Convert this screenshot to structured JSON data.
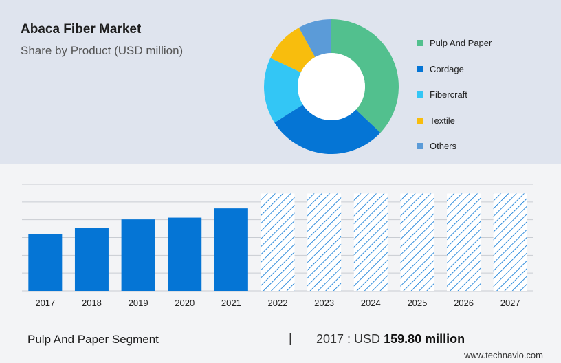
{
  "header": {
    "title": "Abaca Fiber Market",
    "subtitle": "Share by Product (USD million)"
  },
  "legend": [
    {
      "label": "Pulp And Paper",
      "color": "#52c08e"
    },
    {
      "label": "Cordage",
      "color": "#0575d5"
    },
    {
      "label": "Fibercraft",
      "color": "#33c6f5"
    },
    {
      "label": "Textile",
      "color": "#f8bd0d"
    },
    {
      "label": "Others",
      "color": "#5b9bd8"
    }
  ],
  "chart_data": [
    {
      "type": "pie",
      "variant": "donut",
      "categories": [
        "Pulp And Paper",
        "Cordage",
        "Fibercraft",
        "Textile",
        "Others"
      ],
      "values": [
        37,
        29,
        16,
        10,
        8
      ],
      "colors": [
        "#52c08e",
        "#0575d5",
        "#33c6f5",
        "#f8bd0d",
        "#5b9bd8"
      ]
    },
    {
      "type": "bar",
      "categories": [
        "2017",
        "2018",
        "2019",
        "2020",
        "2021",
        "2022",
        "2023",
        "2024",
        "2025",
        "2026",
        "2027"
      ],
      "values": [
        159.8,
        178,
        201,
        206,
        232,
        274,
        274,
        274,
        274,
        274,
        274
      ],
      "actual_years": [
        "2017",
        "2018",
        "2019",
        "2020",
        "2021"
      ],
      "forecast_years": [
        "2022",
        "2023",
        "2024",
        "2025",
        "2026",
        "2027"
      ],
      "ylim": [
        0,
        300
      ],
      "grid": true,
      "bar_color": "#0575d5",
      "forecast_pattern": "diagonal-hatch"
    }
  ],
  "footer": {
    "segment": "Pulp And Paper Segment",
    "divider": "|",
    "year_label": "2017 : USD",
    "value": "159.80 million",
    "source": "www.technavio.com"
  }
}
